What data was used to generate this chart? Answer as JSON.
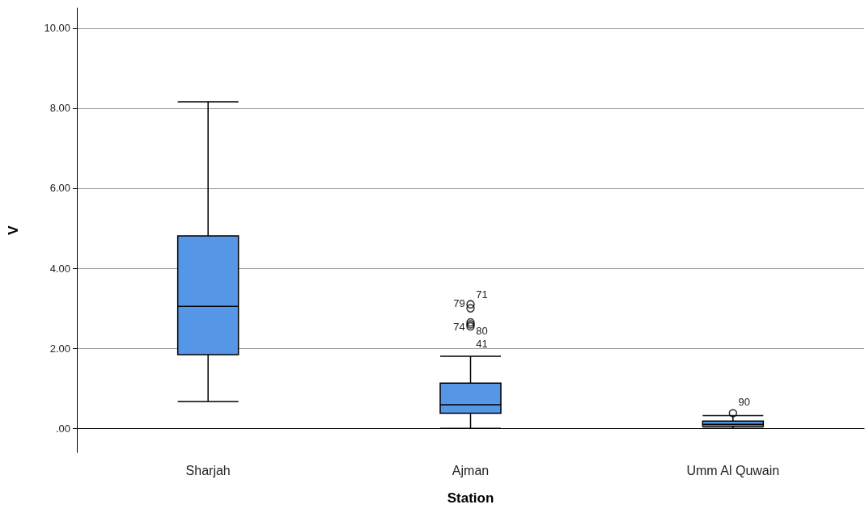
{
  "chart_data": {
    "type": "box",
    "xlabel": "Station",
    "ylabel": "V",
    "categories": [
      "Sharjah",
      "Ajman",
      "Umm Al Quwain"
    ],
    "boxes": [
      {
        "low": 0.67,
        "q1": 1.84,
        "median": 3.05,
        "q3": 4.81,
        "high": 8.16
      },
      {
        "low": 0.0,
        "q1": 0.38,
        "median": 0.59,
        "q3": 1.13,
        "high": 1.8
      },
      {
        "low": 0.0,
        "q1": 0.05,
        "median": 0.1,
        "q3": 0.18,
        "high": 0.32
      }
    ],
    "series": [
      {
        "type": "scatter",
        "marker": "circle",
        "color": "#000000",
        "x": [
          "Ajman",
          "Ajman",
          "Ajman",
          "Ajman",
          "Ajman",
          "Umm Al Quwain"
        ],
        "values": [
          3.1,
          3.0,
          2.65,
          2.6,
          2.55,
          0.38
        ]
      }
    ],
    "color": "#5596e6",
    "ylim": [
      -0.6,
      10.5
    ],
    "yticks": [
      {
        "value": 0,
        "label": ".00"
      },
      {
        "value": 2,
        "label": "2.00"
      },
      {
        "value": 4,
        "label": "4.00"
      },
      {
        "value": 6,
        "label": "6.00"
      },
      {
        "value": 8,
        "label": "8.00"
      },
      {
        "value": 10,
        "label": "10.00"
      }
    ],
    "grid": "y",
    "annotations": [
      {
        "text": "71",
        "x": "Ajman",
        "y": 3.1
      },
      {
        "text": "79",
        "x": "Ajman",
        "y": 3.0
      },
      {
        "text": "74",
        "x": "Ajman",
        "y": 2.65
      },
      {
        "text": "80",
        "x": "Ajman",
        "y": 2.6
      },
      {
        "text": "41",
        "x": "Ajman",
        "y": 2.55
      },
      {
        "text": "90",
        "x": "Umm Al Quwain",
        "y": 0.38
      }
    ]
  }
}
